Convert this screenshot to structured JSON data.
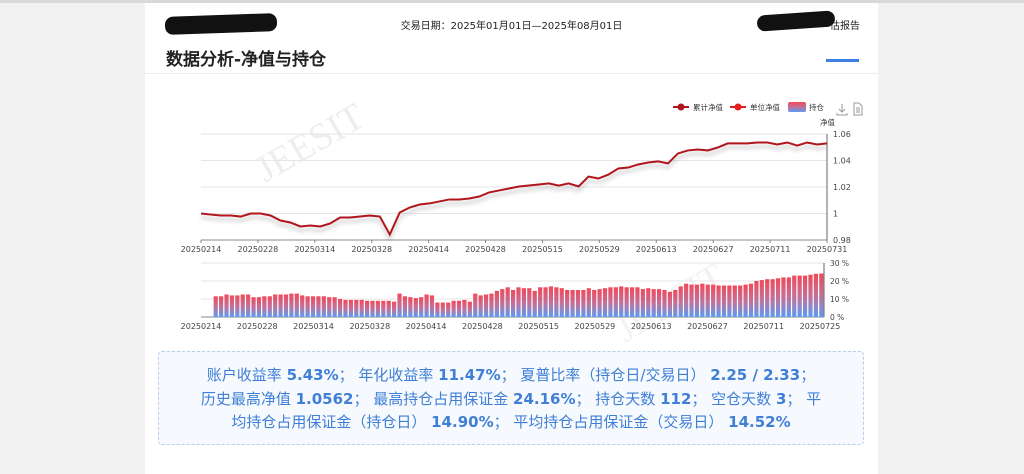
{
  "header": {
    "trade_date": "交易日期：2025年01月01日—2025年08月01日",
    "report_suffix": "估报告",
    "page_title": "数据分析-净值与持仓"
  },
  "toolbar": {
    "download_icon": "download-icon",
    "data_view_icon": "document-icon"
  },
  "colors": {
    "nav_line": "#b0141c",
    "unit_nav": "#e81c1c",
    "bar_top": "#f0495a",
    "bar_bottom": "#5c9cf4",
    "accent": "#3f7fe0",
    "summary_text": "#3f7fd6"
  },
  "watermark": "JEESIT",
  "chart_data": [
    {
      "type": "line",
      "legend": [
        "累计净值",
        "单位净值",
        "持仓"
      ],
      "legend_placement": "top-right",
      "ylabel": "净值",
      "ylim": [
        0.98,
        1.06
      ],
      "yticks": [
        "0.98",
        "1",
        "1.02",
        "1.04",
        "1.06"
      ],
      "grid": true,
      "xticks": [
        "20250214",
        "20250228",
        "20250314",
        "20250328",
        "20250414",
        "20250428",
        "20250515",
        "20250529",
        "20250613",
        "20250627",
        "20250711",
        "20250731"
      ],
      "series": [
        {
          "name": "累计净值",
          "values": [
            1.0,
            0.9992,
            0.9985,
            0.9985,
            0.9977,
            1.0,
            1.0,
            0.9985,
            0.9947,
            0.9932,
            0.9902,
            0.9909,
            0.9902,
            0.9925,
            0.997,
            0.997,
            0.9977,
            0.9985,
            0.9977,
            0.9841,
            1.0008,
            1.0045,
            1.0068,
            1.0076,
            1.0091,
            1.0106,
            1.0106,
            1.0113,
            1.0128,
            1.0159,
            1.0174,
            1.0189,
            1.0204,
            1.0211,
            1.0219,
            1.0227,
            1.0211,
            1.0227,
            1.0204,
            1.0279,
            1.0264,
            1.0294,
            1.034,
            1.0347,
            1.037,
            1.0385,
            1.0393,
            1.0378,
            1.0453,
            1.0476,
            1.0483,
            1.0476,
            1.0498,
            1.0529,
            1.0529,
            1.0529,
            1.0536,
            1.0536,
            1.0521,
            1.0536,
            1.0513,
            1.0536,
            1.0521,
            1.0529
          ]
        }
      ]
    },
    {
      "type": "bar",
      "ylim": [
        0,
        30
      ],
      "yticks": [
        "0 %",
        "10 %",
        "20 %",
        "30 %"
      ],
      "grid": true,
      "xticks": [
        "20250214",
        "20250228",
        "20250314",
        "20250328",
        "20250414",
        "20250428",
        "20250515",
        "20250529",
        "20250613",
        "20250627",
        "20250711",
        "20250725"
      ],
      "series": [
        {
          "name": "持仓",
          "values": [
            11.5,
            11.5,
            12.5,
            12,
            12,
            12.5,
            12.5,
            11,
            11,
            11.5,
            11.5,
            12.5,
            12.5,
            12.5,
            13,
            13,
            12,
            11.5,
            11.5,
            11.5,
            11.5,
            11,
            11,
            10,
            9.5,
            9.5,
            9.5,
            9.5,
            9,
            9,
            9,
            9,
            9,
            8.5,
            13,
            11.5,
            11,
            10.5,
            11,
            12.5,
            12,
            8,
            8,
            8,
            9,
            9,
            9.5,
            8.5,
            13,
            12,
            12.5,
            13,
            14.5,
            15.5,
            16.5,
            15,
            16.5,
            16,
            16,
            14.5,
            16.5,
            16.5,
            17,
            16.5,
            16,
            15,
            15,
            15,
            15,
            16,
            15,
            15.5,
            16,
            16.5,
            16.5,
            17,
            16.5,
            16.5,
            16.5,
            15.5,
            16,
            15.5,
            15.5,
            15,
            14,
            15,
            17,
            18.5,
            18,
            18,
            18.5,
            18,
            18,
            17.5,
            17.5,
            17.5,
            17.5,
            17.5,
            18,
            18.5,
            20,
            20.5,
            21,
            21,
            21.5,
            22,
            22,
            23,
            23,
            23,
            23.5,
            24,
            24.16
          ]
        }
      ]
    }
  ],
  "summary": {
    "l1": [
      "账户收益率 ",
      "5.43%",
      "；  年化收益率 ",
      "11.47%",
      "；  夏普比率（持仓日/交易日） ",
      "2.25 / 2.33",
      "；"
    ],
    "l2": [
      "历史最高净值 ",
      "1.0562",
      "；  最高持仓占用保证金 ",
      "24.16%",
      "；  持仓天数 ",
      "112",
      "；  空仓天数 ",
      "3",
      "；  平"
    ],
    "l3": [
      "均持仓占用保证金（持仓日） ",
      "14.90%",
      "；  平均持仓占用保证金（交易日） ",
      "14.52%",
      ""
    ]
  }
}
